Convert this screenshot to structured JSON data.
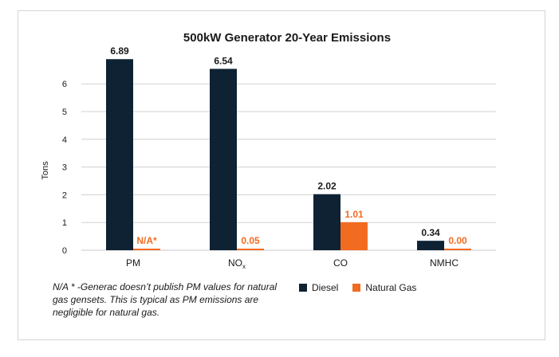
{
  "chart_data": {
    "type": "bar",
    "title": "500kW Generator 20-Year Emissions",
    "ylabel": "Tons",
    "xlabel": "",
    "ylim": [
      0,
      6.8
    ],
    "yticks": [
      0,
      1,
      2,
      3,
      4,
      5,
      6
    ],
    "grid": true,
    "legend_position": "bottom-right",
    "categories": [
      {
        "main": "PM",
        "sub": ""
      },
      {
        "main": "NO",
        "sub": "x"
      },
      {
        "main": "CO",
        "sub": ""
      },
      {
        "main": "NMHC",
        "sub": ""
      }
    ],
    "series": [
      {
        "name": "Diesel",
        "color": "#0e2233",
        "values": [
          6.89,
          6.54,
          2.02,
          0.34
        ],
        "labels": [
          "6.89",
          "6.54",
          "2.02",
          "0.34"
        ]
      },
      {
        "name": "Natural Gas",
        "color": "#f26b21",
        "values": [
          0,
          0.05,
          1.01,
          0.0
        ],
        "labels": [
          "N/A*",
          "0.05",
          "1.01",
          "0.00"
        ]
      }
    ]
  },
  "footnote": "N/A * -Generac doesn’t publish PM values for natural gas gensets. This is typical as PM emissions are negligible for natural gas."
}
